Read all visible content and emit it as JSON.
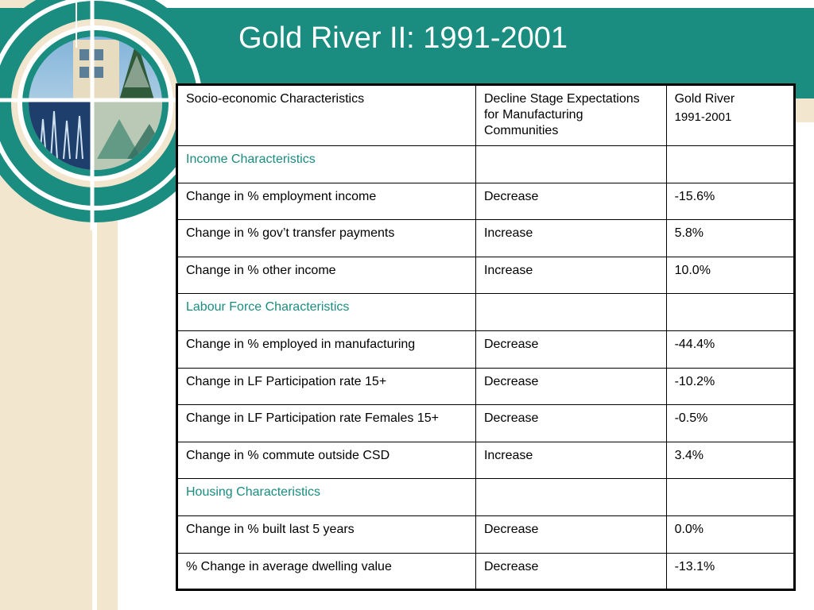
{
  "slide": {
    "title": "Gold River II: 1991-2001"
  },
  "table": {
    "headers": {
      "characteristics": "Socio-economic Characteristics",
      "expectations": "Decline Stage Expectations for Manufacturing Communities",
      "place": "Gold River",
      "period": "1991-2001"
    },
    "rows": [
      {
        "label": "Income Characteristics",
        "expectation": "",
        "value": "",
        "section": true
      },
      {
        "label": "Change in % employment income",
        "expectation": "Decrease",
        "value": "-15.6%"
      },
      {
        "label": "Change in % gov’t transfer payments",
        "expectation": "Increase",
        "value": "5.8%"
      },
      {
        "label": "Change in % other income",
        "expectation": "Increase",
        "value": "10.0%"
      },
      {
        "label": "Labour Force Characteristics",
        "expectation": "",
        "value": "",
        "section": true
      },
      {
        "label": "Change in % employed in manufacturing",
        "expectation": "Decrease",
        "value": "-44.4%"
      },
      {
        "label": "Change in LF Participation rate 15+",
        "expectation": "Decrease",
        "value": "-10.2%"
      },
      {
        "label": "Change in LF Participation rate Females 15+",
        "expectation": "Decrease",
        "value": "-0.5%"
      },
      {
        "label": "Change in % commute outside CSD",
        "expectation": "Increase",
        "value": "3.4%"
      },
      {
        "label": "Housing Characteristics",
        "expectation": "",
        "value": "",
        "section": true
      },
      {
        "label": "Change in % built last 5 years",
        "expectation": "Decrease",
        "value": "0.0%"
      },
      {
        "label": "% Change in average dwelling value",
        "expectation": "Decrease",
        "value": "-13.1%"
      }
    ]
  },
  "colors": {
    "accent": "#1a8c80",
    "cream": "#f3e6cf",
    "text": "#000000"
  },
  "icons": {
    "ornament": "circular-photo-collage-ornament"
  }
}
